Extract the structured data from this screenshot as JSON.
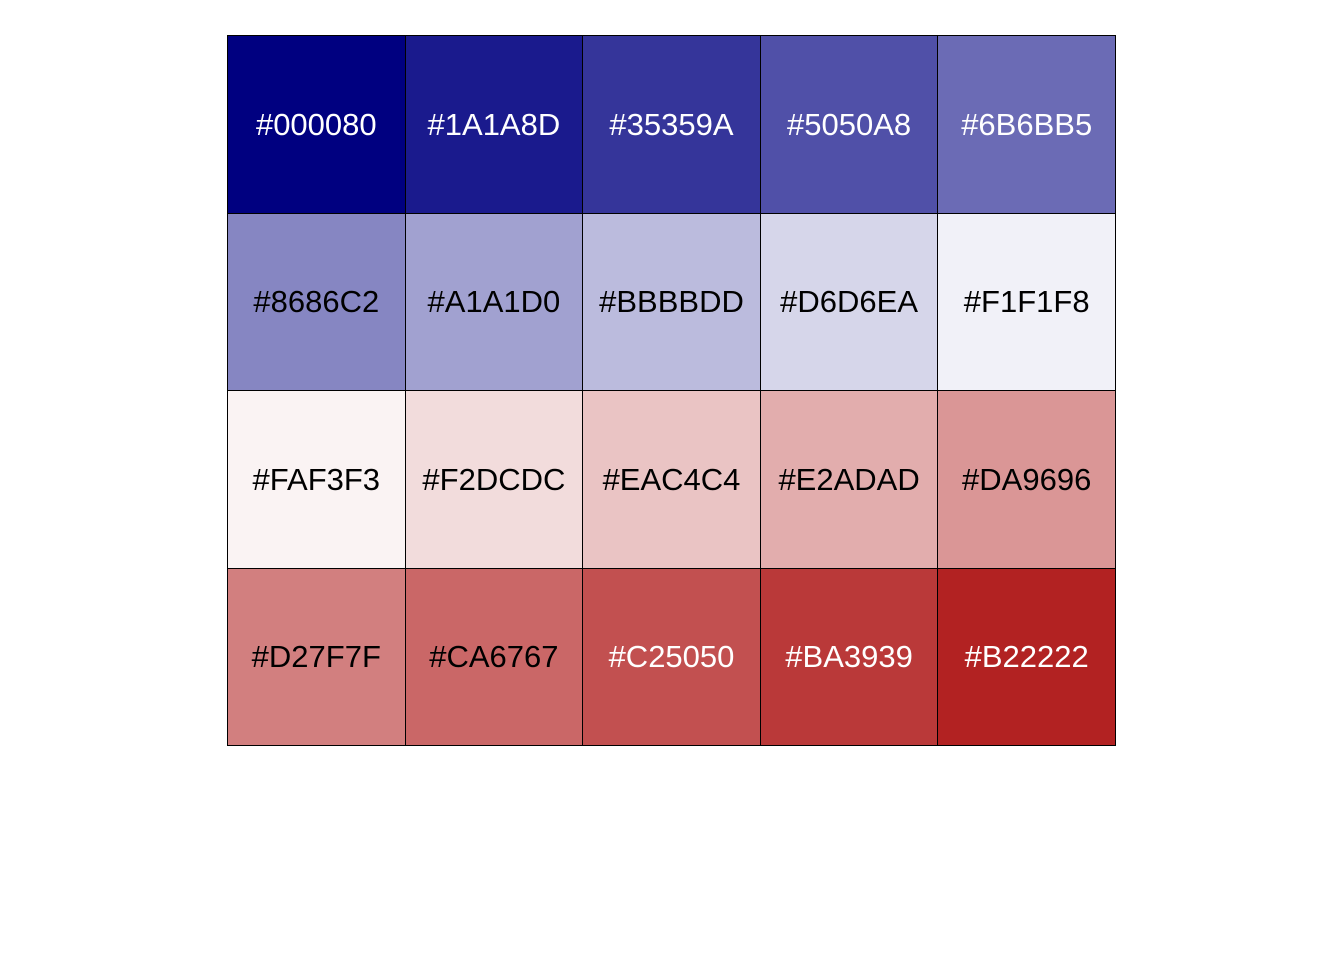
{
  "swatches": [
    {
      "label": "#000080",
      "color": "#000080",
      "text_color": "#ffffff"
    },
    {
      "label": "#1A1A8D",
      "color": "#1A1A8D",
      "text_color": "#ffffff"
    },
    {
      "label": "#35359A",
      "color": "#35359A",
      "text_color": "#ffffff"
    },
    {
      "label": "#5050A8",
      "color": "#5050A8",
      "text_color": "#ffffff"
    },
    {
      "label": "#6B6BB5",
      "color": "#6B6BB5",
      "text_color": "#ffffff"
    },
    {
      "label": "#8686C2",
      "color": "#8686C2",
      "text_color": "#000000"
    },
    {
      "label": "#A1A1D0",
      "color": "#A1A1D0",
      "text_color": "#000000"
    },
    {
      "label": "#BBBBDD",
      "color": "#BBBBDD",
      "text_color": "#000000"
    },
    {
      "label": "#D6D6EA",
      "color": "#D6D6EA",
      "text_color": "#000000"
    },
    {
      "label": "#F1F1F8",
      "color": "#F1F1F8",
      "text_color": "#000000"
    },
    {
      "label": "#FAF3F3",
      "color": "#FAF3F3",
      "text_color": "#000000"
    },
    {
      "label": "#F2DCDC",
      "color": "#F2DCDC",
      "text_color": "#000000"
    },
    {
      "label": "#EAC4C4",
      "color": "#EAC4C4",
      "text_color": "#000000"
    },
    {
      "label": "#E2ADAD",
      "color": "#E2ADAD",
      "text_color": "#000000"
    },
    {
      "label": "#DA9696",
      "color": "#DA9696",
      "text_color": "#000000"
    },
    {
      "label": "#D27F7F",
      "color": "#D27F7F",
      "text_color": "#000000"
    },
    {
      "label": "#CA6767",
      "color": "#CA6767",
      "text_color": "#000000"
    },
    {
      "label": "#C25050",
      "color": "#C25050",
      "text_color": "#ffffff"
    },
    {
      "label": "#BA3939",
      "color": "#BA3939",
      "text_color": "#ffffff"
    },
    {
      "label": "#B22222",
      "color": "#B22222",
      "text_color": "#ffffff"
    }
  ]
}
